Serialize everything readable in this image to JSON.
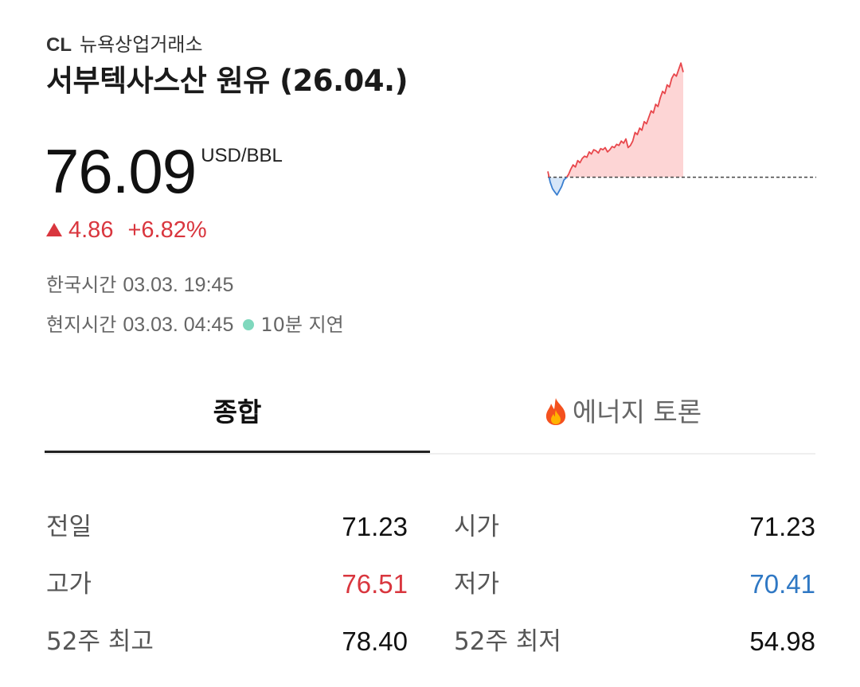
{
  "instrument": {
    "code": "CL",
    "exchange": "뉴욕상업거래소",
    "title": "서부텍사스산 원유 (26.04.)"
  },
  "price": {
    "value": "76.09",
    "unit": "USD/BBL",
    "change": "4.86",
    "change_pct": "+6.82%",
    "direction": "up"
  },
  "times": {
    "kr_label": "한국시간",
    "kr_value": "03.03. 19:45",
    "local_label": "현지시간",
    "local_value": "03.03. 04:45",
    "delay": "10분 지연"
  },
  "tabs": [
    {
      "label": "종합",
      "active": true
    },
    {
      "label": "에너지 토론",
      "active": false,
      "icon": "fire-icon"
    }
  ],
  "stats": [
    {
      "left": {
        "label": "전일",
        "value": "71.23",
        "color": "neutral"
      },
      "right": {
        "label": "시가",
        "value": "71.23",
        "color": "neutral"
      }
    },
    {
      "left": {
        "label": "고가",
        "value": "76.51",
        "color": "up"
      },
      "right": {
        "label": "저가",
        "value": "70.41",
        "color": "down"
      }
    },
    {
      "left": {
        "label": "52주 최고",
        "value": "78.40",
        "color": "neutral"
      },
      "right": {
        "label": "52주 최저",
        "value": "54.98",
        "color": "neutral"
      }
    }
  ],
  "chart_data": {
    "type": "area",
    "baseline": 71.23,
    "ylim": [
      70.0,
      76.7
    ],
    "series": [
      {
        "values": [
          71.5,
          71.0,
          70.7,
          70.55,
          70.41,
          70.6,
          70.8,
          71.1,
          71.2,
          71.35,
          71.6,
          71.8,
          71.7,
          72.0,
          71.9,
          72.1,
          72.2,
          72.15,
          72.4,
          72.3,
          72.5,
          72.45,
          72.35,
          72.55,
          72.5,
          72.6,
          72.4,
          72.5,
          72.65,
          72.6,
          72.75,
          72.7,
          72.9,
          72.8,
          73.0,
          72.6,
          72.7,
          72.9,
          73.3,
          73.2,
          73.5,
          73.4,
          73.8,
          73.7,
          74.0,
          74.3,
          74.2,
          74.6,
          74.5,
          74.9,
          75.2,
          75.1,
          75.5,
          75.4,
          75.8,
          76.0,
          75.9,
          76.2,
          76.51,
          76.09
        ]
      }
    ],
    "colors": {
      "up": "#e8474c",
      "up_fill": "#fdd5d5",
      "down": "#3a7fd0",
      "down_fill": "#d6e6f8",
      "baseline": "#444444"
    }
  }
}
